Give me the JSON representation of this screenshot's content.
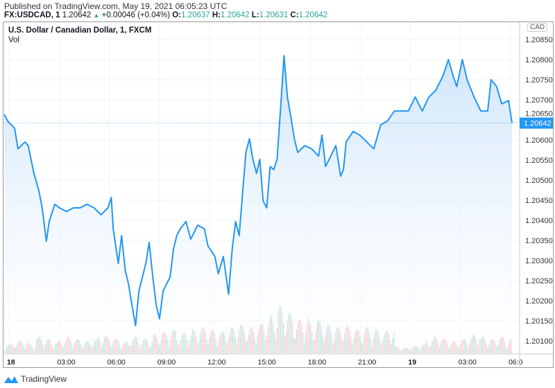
{
  "header": {
    "published": "Published on TradingView.com, May 19, 2021 06:05:23 UTC",
    "symbol": "FX:USDCAD, 1",
    "last": "1.20642",
    "change": "+0.00046 (+0.04%)",
    "o_label": "O:",
    "o": "1.20637",
    "h_label": "H:",
    "h": "1.20642",
    "l_label": "L:",
    "l": "1.20631",
    "c_label": "C:",
    "c": "1.20642"
  },
  "footer": {
    "brand": "TradingView"
  },
  "colors": {
    "line": "#2196f3",
    "fill": "#e3f0fc",
    "up": "#26a69a",
    "down": "#ef5350",
    "badge": "#2196f3"
  },
  "chart_data": {
    "type": "area",
    "title": "U.S. Dollar / Canadian Dollar, 1, FXCM",
    "volume_label": "Vol",
    "currency": "CAD",
    "ylim": [
      1.2009,
      1.2088
    ],
    "yticks": [
      "1.20850",
      "1.20800",
      "1.20750",
      "1.20700",
      "1.20650",
      "1.20600",
      "1.20550",
      "1.20500",
      "1.20450",
      "1.20400",
      "1.20350",
      "1.20300",
      "1.20250",
      "1.20200",
      "1.20150",
      "1.20100"
    ],
    "xlim": [
      "05-17 23:40",
      "05-19 06:30"
    ],
    "xticks": [
      {
        "t": "05-18 00:00",
        "label": "18",
        "bold": true
      },
      {
        "t": "05-18 03:00",
        "label": "03:00"
      },
      {
        "t": "05-18 06:00",
        "label": "06:00"
      },
      {
        "t": "05-18 09:00",
        "label": "09:00"
      },
      {
        "t": "05-18 12:00",
        "label": "12:00"
      },
      {
        "t": "05-18 15:00",
        "label": "15:00"
      },
      {
        "t": "05-18 18:00",
        "label": "18:00"
      },
      {
        "t": "05-18 21:00",
        "label": "21:00"
      },
      {
        "t": "05-19 00:00",
        "label": "19",
        "bold": true
      },
      {
        "t": "05-19 03:00",
        "label": "03:00"
      },
      {
        "t": "05-19 06:00",
        "label": "06:0"
      }
    ],
    "last_price": "1.20642",
    "grid": true,
    "series": [
      [
        "05-17 23:43",
        1.20664
      ],
      [
        "05-17 23:55",
        1.20647
      ],
      [
        "05-18 00:20",
        1.20629
      ],
      [
        "05-18 00:32",
        1.20578
      ],
      [
        "05-18 00:57",
        1.20595
      ],
      [
        "05-18 01:09",
        1.20586
      ],
      [
        "05-18 01:29",
        1.20517
      ],
      [
        "05-18 01:47",
        1.20474
      ],
      [
        "05-18 01:59",
        1.20431
      ],
      [
        "05-18 02:14",
        1.20348
      ],
      [
        "05-18 02:24",
        1.20397
      ],
      [
        "05-18 02:44",
        1.2044
      ],
      [
        "05-18 03:01",
        1.20431
      ],
      [
        "05-18 03:26",
        1.20422
      ],
      [
        "05-18 03:51",
        1.20431
      ],
      [
        "05-18 04:15",
        1.20431
      ],
      [
        "05-18 04:40",
        1.2044
      ],
      [
        "05-18 05:05",
        1.20431
      ],
      [
        "05-18 05:30",
        1.20414
      ],
      [
        "05-18 05:55",
        1.20431
      ],
      [
        "05-18 06:07",
        1.20457
      ],
      [
        "05-18 06:14",
        1.20379
      ],
      [
        "05-18 06:32",
        1.20293
      ],
      [
        "05-18 06:44",
        1.20362
      ],
      [
        "05-18 06:57",
        1.20276
      ],
      [
        "05-18 07:09",
        1.20241
      ],
      [
        "05-18 07:21",
        1.2019
      ],
      [
        "05-18 07:34",
        1.20138
      ],
      [
        "05-18 07:46",
        1.20224
      ],
      [
        "05-18 08:11",
        1.20293
      ],
      [
        "05-18 08:23",
        1.20345
      ],
      [
        "05-18 08:36",
        1.20259
      ],
      [
        "05-18 08:48",
        1.2019
      ],
      [
        "05-18 09:00",
        1.20155
      ],
      [
        "05-18 09:13",
        1.20224
      ],
      [
        "05-18 09:25",
        1.20241
      ],
      [
        "05-18 09:38",
        1.20259
      ],
      [
        "05-18 09:50",
        1.20328
      ],
      [
        "05-18 10:02",
        1.20362
      ],
      [
        "05-18 10:15",
        1.20379
      ],
      [
        "05-18 10:35",
        1.20397
      ],
      [
        "05-18 10:52",
        1.20353
      ],
      [
        "05-18 11:17",
        1.20388
      ],
      [
        "05-18 11:41",
        1.20379
      ],
      [
        "05-18 11:54",
        1.20336
      ],
      [
        "05-18 12:19",
        1.2031
      ],
      [
        "05-18 12:31",
        1.20267
      ],
      [
        "05-18 12:49",
        1.2031
      ],
      [
        "05-18 13:08",
        1.20216
      ],
      [
        "05-18 13:21",
        1.20328
      ],
      [
        "05-18 13:33",
        1.20397
      ],
      [
        "05-18 13:46",
        1.20362
      ],
      [
        "05-18 13:58",
        1.20466
      ],
      [
        "05-18 14:10",
        1.20569
      ],
      [
        "05-18 14:23",
        1.20603
      ],
      [
        "05-18 14:35",
        1.20552
      ],
      [
        "05-18 14:48",
        1.20517
      ],
      [
        "05-18 15:00",
        1.20552
      ],
      [
        "05-18 15:12",
        1.20448
      ],
      [
        "05-18 15:25",
        1.20431
      ],
      [
        "05-18 15:37",
        1.20534
      ],
      [
        "05-18 15:50",
        1.20526
      ],
      [
        "05-18 16:02",
        1.20552
      ],
      [
        "05-18 16:14",
        1.20672
      ],
      [
        "05-18 16:27",
        1.2081
      ],
      [
        "05-18 16:39",
        1.20707
      ],
      [
        "05-18 16:52",
        1.20655
      ],
      [
        "05-18 17:04",
        1.20603
      ],
      [
        "05-18 17:16",
        1.20569
      ],
      [
        "05-18 17:41",
        1.20586
      ],
      [
        "05-18 18:06",
        1.20578
      ],
      [
        "05-18 18:31",
        1.2056
      ],
      [
        "05-18 18:43",
        1.20612
      ],
      [
        "05-18 18:56",
        1.20534
      ],
      [
        "05-18 19:15",
        1.2056
      ],
      [
        "05-18 19:33",
        1.20586
      ],
      [
        "05-18 19:50",
        1.2051
      ],
      [
        "05-18 20:00",
        1.20526
      ],
      [
        "05-18 20:10",
        1.20595
      ],
      [
        "05-18 20:35",
        1.20621
      ],
      [
        "05-18 20:59",
        1.20612
      ],
      [
        "05-18 21:24",
        1.20595
      ],
      [
        "05-18 21:49",
        1.20578
      ],
      [
        "05-18 22:14",
        1.20638
      ],
      [
        "05-18 22:38",
        1.20647
      ],
      [
        "05-18 23:03",
        1.20672
      ],
      [
        "05-18 23:28",
        1.20672
      ],
      [
        "05-18 23:53",
        1.20672
      ],
      [
        "05-19 00:18",
        1.20707
      ],
      [
        "05-19 00:43",
        1.20672
      ],
      [
        "05-19 01:07",
        1.20707
      ],
      [
        "05-19 01:32",
        1.20724
      ],
      [
        "05-19 01:57",
        1.20759
      ],
      [
        "05-19 02:17",
        1.208
      ],
      [
        "05-19 02:34",
        1.20759
      ],
      [
        "05-19 02:47",
        1.20733
      ],
      [
        "05-19 03:07",
        1.208
      ],
      [
        "05-19 03:24",
        1.2075
      ],
      [
        "05-19 03:49",
        1.20707
      ],
      [
        "05-19 04:13",
        1.20672
      ],
      [
        "05-19 04:38",
        1.20672
      ],
      [
        "05-19 04:50",
        1.2075
      ],
      [
        "05-19 05:10",
        1.20733
      ],
      [
        "05-19 05:28",
        1.2069
      ],
      [
        "05-19 05:53",
        1.20698
      ],
      [
        "05-19 06:05",
        1.20642
      ]
    ],
    "volume_relative": [
      0.2,
      0.25,
      0.3,
      0.2,
      0.35,
      0.3,
      0.25,
      0.3,
      0.35,
      0.3,
      0.25,
      0.3,
      0.4,
      0.35,
      0.3,
      0.25,
      0.35,
      0.3,
      0.3,
      0.4,
      0.45,
      0.5,
      0.4,
      0.45,
      0.5,
      0.55,
      0.5,
      0.45,
      0.5,
      0.55,
      0.6,
      0.55,
      0.6,
      0.7,
      0.8,
      1.0,
      0.85,
      0.7,
      0.75,
      0.65,
      0.7,
      0.6,
      0.55,
      0.6,
      0.55,
      0.5,
      0.55,
      0.5,
      0.45,
      0.5,
      0.15,
      0.12,
      0.15,
      0.2,
      0.3,
      0.35,
      0.3,
      0.25,
      0.3,
      0.35,
      0.4,
      0.35,
      0.3,
      0.35,
      0.3
    ]
  }
}
